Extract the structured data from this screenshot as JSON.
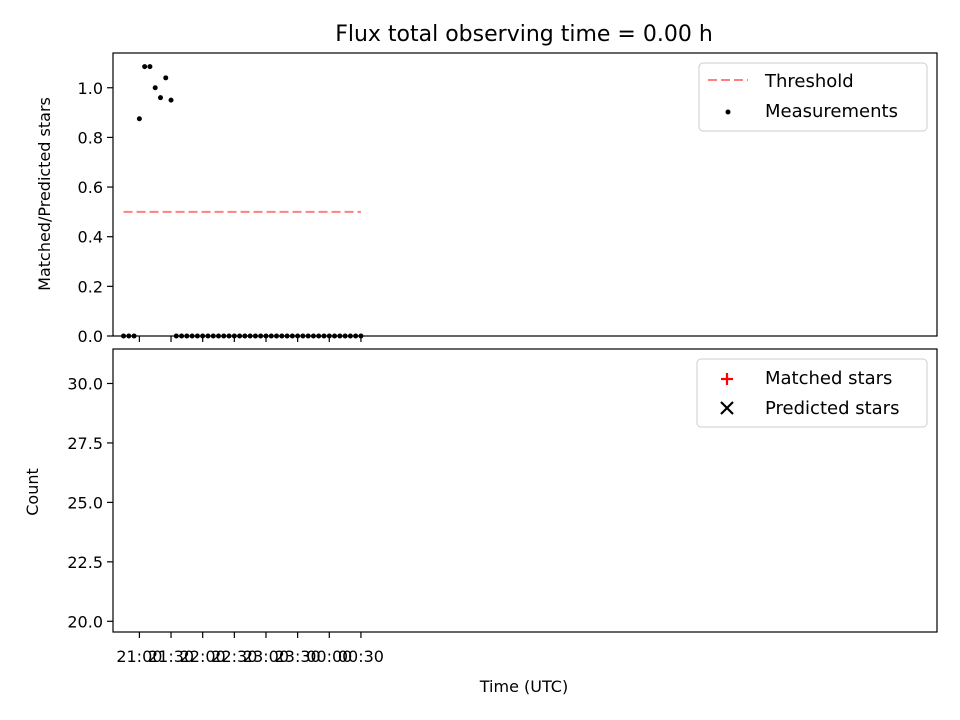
{
  "chart_data": [
    {
      "type": "scatter",
      "title": "Flux total observing time = 0.00 h",
      "xlabel": "",
      "ylabel": "Matched/Predicted stars",
      "ylim": [
        0,
        1.14
      ],
      "yticks": [
        "0.0",
        "0.2",
        "0.4",
        "0.6",
        "0.8",
        "1.0"
      ],
      "xlim_min": [
        1235,
        2016
      ],
      "legend": {
        "position": "top-right",
        "entries": [
          {
            "label": "Threshold",
            "marker": "dashed-line",
            "color": "#ff8080"
          },
          {
            "label": "Measurements",
            "marker": "dot",
            "color": "#000000"
          }
        ]
      },
      "threshold": {
        "value": 0.5,
        "x_start": 1245,
        "x_end": 1470,
        "color": "#ff8080"
      },
      "series": [
        {
          "name": "Measurements",
          "marker": "dot",
          "color": "#000000",
          "x": [
            1245,
            1250,
            1255,
            1260,
            1265,
            1270,
            1275,
            1280,
            1285,
            1290,
            1295,
            1300,
            1305,
            1310,
            1315,
            1320,
            1325,
            1330,
            1335,
            1340,
            1345,
            1350,
            1355,
            1360,
            1365,
            1370,
            1375,
            1380,
            1385,
            1390,
            1395,
            1400,
            1405,
            1410,
            1415,
            1420,
            1425,
            1430,
            1435,
            1440,
            1445,
            1450,
            1455,
            1460,
            1465,
            1470
          ],
          "y": [
            0,
            0,
            0,
            0.875,
            1.085,
            1.085,
            1.0,
            0.96,
            1.04,
            0.95,
            0,
            0,
            0,
            0,
            0,
            0,
            0,
            0,
            0,
            0,
            0,
            0,
            0,
            0,
            0,
            0,
            0,
            0,
            0,
            0,
            0,
            0,
            0,
            0,
            0,
            0,
            0,
            0,
            0,
            0,
            0,
            0,
            0,
            0,
            0,
            0
          ]
        }
      ]
    },
    {
      "type": "scatter",
      "title": "",
      "xlabel": "Time (UTC)",
      "ylabel": "Count",
      "ylim": [
        19.55,
        31.45
      ],
      "yticks": [
        "20.0",
        "22.5",
        "25.0",
        "27.5",
        "30.0"
      ],
      "xlim_min": [
        1235,
        2016
      ],
      "xticks": [
        {
          "label": "21:00",
          "minute": 1260
        },
        {
          "label": "21:30",
          "minute": 1290
        },
        {
          "label": "22:00",
          "minute": 1320
        },
        {
          "label": "22:30",
          "minute": 1350
        },
        {
          "label": "23:00",
          "minute": 1380
        },
        {
          "label": "23:30",
          "minute": 1410
        },
        {
          "label": "00:00",
          "minute": 1440
        },
        {
          "label": "00:30",
          "minute": 1470
        }
      ],
      "legend": {
        "position": "top-right",
        "entries": [
          {
            "label": "Matched stars",
            "marker": "plus",
            "color": "#ff0000"
          },
          {
            "label": "Predicted stars",
            "marker": "x",
            "color": "#000000"
          }
        ]
      },
      "series": [
        {
          "name": "Matched stars",
          "marker": "plus",
          "color": "#ff0000",
          "x": [],
          "y": []
        },
        {
          "name": "Predicted stars",
          "marker": "x",
          "color": "#000000",
          "x": [],
          "y": []
        }
      ]
    }
  ]
}
